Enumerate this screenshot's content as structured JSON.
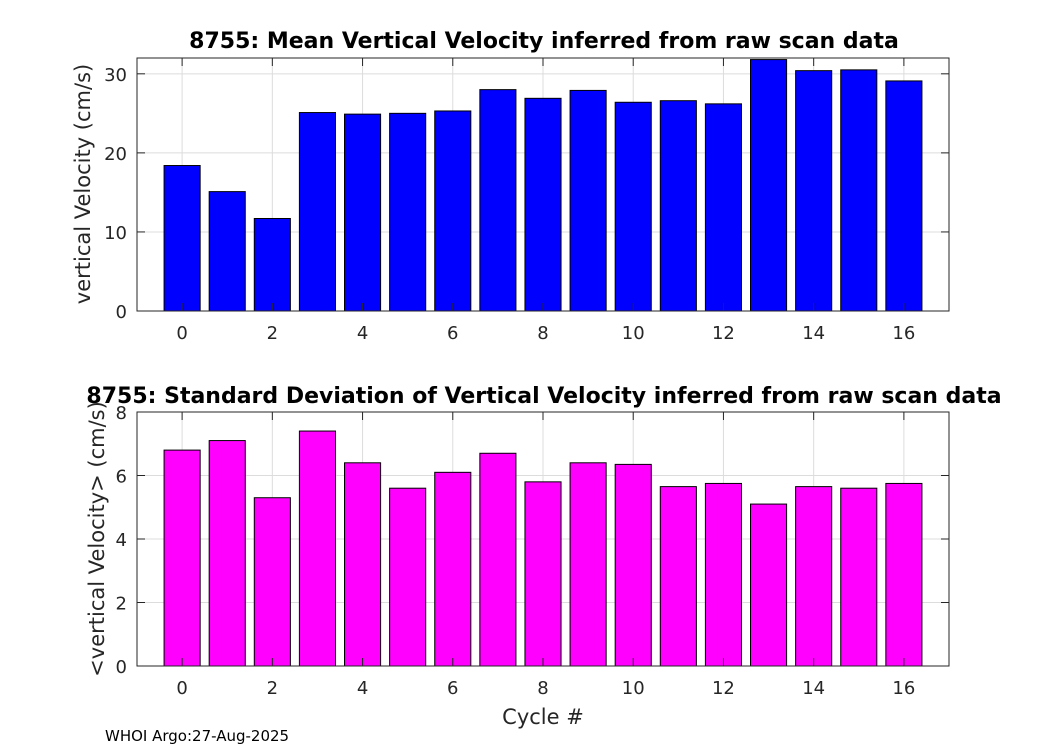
{
  "chart_data": [
    {
      "type": "bar",
      "title": "8755: Mean Vertical Velocity inferred from raw scan data",
      "xlabel": "",
      "ylabel": "vertical Velocity (cm/s)",
      "categories": [
        0,
        1,
        2,
        3,
        4,
        5,
        6,
        7,
        8,
        9,
        10,
        11,
        12,
        13,
        14,
        15,
        16
      ],
      "values": [
        18.4,
        15.1,
        11.7,
        25.1,
        24.9,
        25.0,
        25.3,
        28.0,
        26.9,
        27.9,
        26.4,
        26.6,
        26.2,
        31.8,
        30.4,
        30.5,
        29.1
      ],
      "xlim": [
        -1,
        17
      ],
      "ylim": [
        0,
        32
      ],
      "xticks": [
        0,
        2,
        4,
        6,
        8,
        10,
        12,
        14,
        16
      ],
      "yticks": [
        0,
        10,
        20,
        30
      ],
      "color": "#0000ff",
      "grid": true
    },
    {
      "type": "bar",
      "title": "8755: Standard Deviation of Vertical Velocity inferred from raw scan data",
      "xlabel": "Cycle #",
      "ylabel": "<vertical Velocity> (cm/s)",
      "categories": [
        0,
        1,
        2,
        3,
        4,
        5,
        6,
        7,
        8,
        9,
        10,
        11,
        12,
        13,
        14,
        15,
        16
      ],
      "values": [
        6.8,
        7.1,
        5.3,
        7.4,
        6.4,
        5.6,
        6.1,
        6.7,
        5.8,
        6.4,
        6.35,
        5.65,
        5.75,
        5.1,
        5.65,
        5.6,
        5.75
      ],
      "xlim": [
        -1,
        17
      ],
      "ylim": [
        0,
        8
      ],
      "xticks": [
        0,
        2,
        4,
        6,
        8,
        10,
        12,
        14,
        16
      ],
      "yticks": [
        0,
        2,
        4,
        6,
        8
      ],
      "color": "#ff00ff",
      "grid": true
    }
  ],
  "footer": "WHOI Argo:27-Aug-2025"
}
